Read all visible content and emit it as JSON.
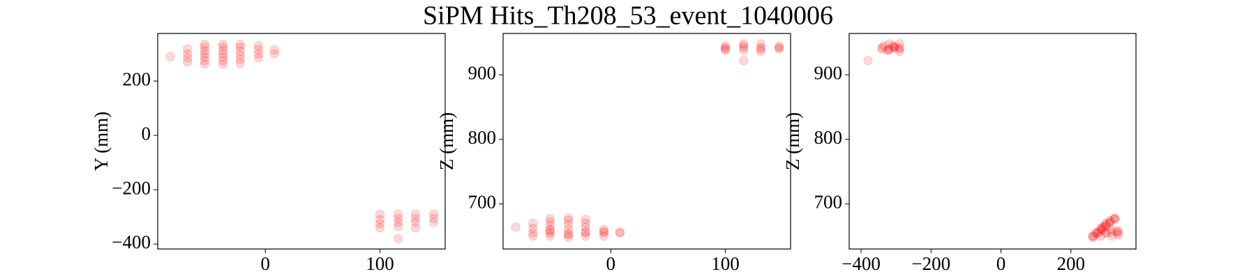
{
  "title": "SiPM Hits_Th208_53_event_1040006",
  "chart_data": [
    {
      "type": "scatter",
      "ylabel": "Y (mm)",
      "color": "red",
      "xlim": [
        -94,
        157
      ],
      "ylim": [
        -418,
        375
      ],
      "xticks": [
        0,
        100
      ],
      "yticks": [
        {
          "value": -400,
          "label": "−400"
        },
        {
          "value": -200,
          "label": "−200"
        },
        0,
        200
      ],
      "x": [
        -83,
        -68,
        -68,
        -68,
        -68,
        -53,
        -53,
        -53,
        -53,
        -53,
        -53,
        -53,
        -37,
        -37,
        -37,
        -37,
        -37,
        -37,
        -37,
        -22,
        -22,
        -22,
        -22,
        -22,
        -22,
        -6,
        -6,
        -6,
        -6,
        8,
        8,
        100,
        100,
        100,
        100,
        116,
        116,
        116,
        116,
        116,
        131,
        131,
        131,
        131,
        147,
        147,
        147
      ],
      "y": [
        290,
        270,
        285,
        300,
        318,
        262,
        275,
        288,
        300,
        312,
        325,
        335,
        262,
        275,
        288,
        300,
        312,
        325,
        335,
        265,
        280,
        295,
        310,
        325,
        335,
        285,
        300,
        315,
        330,
        300,
        315,
        -290,
        -310,
        -325,
        -340,
        -290,
        -305,
        -320,
        -335,
        -380,
        -290,
        -305,
        -320,
        -340,
        -290,
        -305,
        -320
      ]
    },
    {
      "type": "scatter",
      "ylabel": "Z (mm)",
      "color": "red",
      "xlim": [
        -94,
        157
      ],
      "ylim": [
        630,
        964
      ],
      "xticks": [
        0,
        100
      ],
      "yticks": [
        700,
        800,
        900
      ],
      "x": [
        -83,
        -68,
        -68,
        -68,
        -68,
        -53,
        -53,
        -53,
        -53,
        -53,
        -53,
        -53,
        -37,
        -37,
        -37,
        -37,
        -37,
        -37,
        -37,
        -22,
        -22,
        -22,
        -22,
        -22,
        -22,
        -6,
        -6,
        -6,
        -6,
        8,
        8,
        100,
        100,
        100,
        100,
        116,
        116,
        116,
        116,
        116,
        131,
        131,
        131,
        131,
        147,
        147,
        147
      ],
      "y": [
        664,
        655,
        662,
        670,
        650,
        650,
        655,
        660,
        666,
        672,
        677,
        658,
        648,
        654,
        660,
        668,
        674,
        678,
        652,
        650,
        657,
        664,
        670,
        676,
        655,
        650,
        655,
        660,
        657,
        655,
        656,
        940,
        945,
        938,
        942,
        948,
        942,
        938,
        945,
        922,
        936,
        942,
        948,
        940,
        942,
        944,
        940
      ]
    },
    {
      "type": "scatter",
      "ylabel": "Z (mm)",
      "color": "red",
      "xlim": [
        -434,
        386
      ],
      "ylim": [
        630,
        964
      ],
      "xticks": [
        {
          "value": -400,
          "label": "−400"
        },
        {
          "value": -200,
          "label": "−200"
        },
        0,
        200
      ],
      "yticks": [
        700,
        800,
        900
      ],
      "x": [
        290,
        270,
        285,
        300,
        318,
        262,
        275,
        288,
        300,
        312,
        325,
        335,
        262,
        275,
        288,
        300,
        312,
        325,
        335,
        265,
        280,
        295,
        310,
        325,
        335,
        285,
        300,
        315,
        330,
        300,
        315,
        -290,
        -310,
        -325,
        -340,
        -290,
        -305,
        -320,
        -335,
        -380,
        -290,
        -305,
        -320,
        -340,
        -290,
        -305,
        -320
      ],
      "y": [
        664,
        655,
        662,
        670,
        650,
        650,
        655,
        660,
        666,
        672,
        677,
        658,
        648,
        654,
        660,
        668,
        674,
        678,
        652,
        650,
        657,
        664,
        670,
        676,
        655,
        650,
        655,
        660,
        657,
        655,
        656,
        940,
        945,
        938,
        942,
        948,
        942,
        938,
        945,
        922,
        936,
        942,
        948,
        940,
        942,
        944,
        940
      ]
    }
  ]
}
